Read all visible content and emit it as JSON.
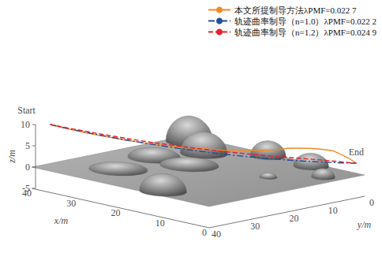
{
  "chart_data": {
    "type": "line3d",
    "xlabel": "x/m",
    "ylabel": "y/m",
    "zlabel": "z/m",
    "xlim": [
      0,
      40
    ],
    "ylim": [
      0,
      40
    ],
    "zlim": [
      -5,
      10
    ],
    "xticks": [
      0,
      10,
      20,
      30,
      40
    ],
    "yticks": [
      0,
      10,
      20,
      30,
      40
    ],
    "zticks": [
      -5,
      0,
      5,
      10
    ],
    "legend": "top right",
    "series": [
      {
        "name": "本文所提制导方法λPMF=0.022 7",
        "color": "#f08a24",
        "line_style": "solid",
        "x": [
          38,
          34.3,
          30.6,
          26.9,
          23.2,
          19.5,
          15.8,
          12.1,
          8.4,
          4.7,
          2.85,
          1
        ],
        "y": [
          37.5,
          33.85,
          30.2,
          26.55,
          22.9,
          19.25,
          15.6,
          11.95,
          8.3,
          4.65,
          2.83,
          1
        ],
        "z": [
          10,
          8.5,
          7.3,
          6.3,
          5.6,
          5.2,
          5.0,
          5.2,
          5.9,
          5.7,
          4.7,
          2.7
        ]
      },
      {
        "name": "轨迹曲率制导（n=1.0）λPMF=0.022 2",
        "color": "#1f4e9c",
        "line_style": "dashdot",
        "x": [
          38,
          34.3,
          30.6,
          26.9,
          23.2,
          19.5,
          15.8,
          12.1,
          8.4,
          4.7,
          1
        ],
        "y": [
          37.5,
          33.85,
          30.2,
          26.55,
          22.9,
          19.25,
          15.6,
          11.95,
          8.3,
          4.65,
          1
        ],
        "z": [
          10,
          8.61,
          7.37,
          6.28,
          5.33,
          4.53,
          3.87,
          3.36,
          2.99,
          2.77,
          2.7
        ]
      },
      {
        "name": "轨迹曲率制导（n=1.2）λPMF=0.024 9",
        "color": "#e8202a",
        "line_style": "dashed",
        "x": [
          38,
          34.3,
          30.6,
          26.9,
          23.2,
          19.5,
          15.8,
          12.1,
          8.4,
          4.7,
          1
        ],
        "y": [
          37.5,
          33.85,
          30.2,
          26.55,
          22.9,
          19.25,
          15.6,
          11.95,
          8.3,
          4.65,
          1
        ],
        "z": [
          10,
          8.8,
          7.7,
          6.7,
          5.85,
          5.1,
          4.5,
          4.0,
          3.6,
          3.2,
          2.7
        ]
      }
    ],
    "terrain": {
      "ground_z": 0,
      "obstacles": [
        {
          "x": 36.4,
          "y": 3.5,
          "r": 4,
          "h": 6
        },
        {
          "x": 28.6,
          "y": 8.7,
          "r": 4,
          "h": 5
        },
        {
          "x": 20.4,
          "y": 1.5,
          "r": 3,
          "h": 3.5
        },
        {
          "x": 31.8,
          "y": 17.8,
          "r": 4.5,
          "h": 2
        },
        {
          "x": 13,
          "y": 37,
          "r": 4,
          "h": 4
        },
        {
          "x": 29.4,
          "y": 29.8,
          "r": 5,
          "h": 1
        },
        {
          "x": 23.9,
          "y": 17.8,
          "r": 5,
          "h": 1.2
        },
        {
          "x": 10.3,
          "y": 2,
          "r": 3,
          "h": 3
        },
        {
          "x": 3.2,
          "y": 7,
          "r": 2,
          "h": 2
        },
        {
          "x": 9.1,
          "y": 14.4,
          "r": 1.5,
          "h": 1
        }
      ]
    },
    "annotations": [
      {
        "text": "Start",
        "x": 38,
        "y": 37.5,
        "z": 10
      },
      {
        "text": "End",
        "x": 1,
        "y": 1,
        "z": 2.7
      }
    ]
  }
}
